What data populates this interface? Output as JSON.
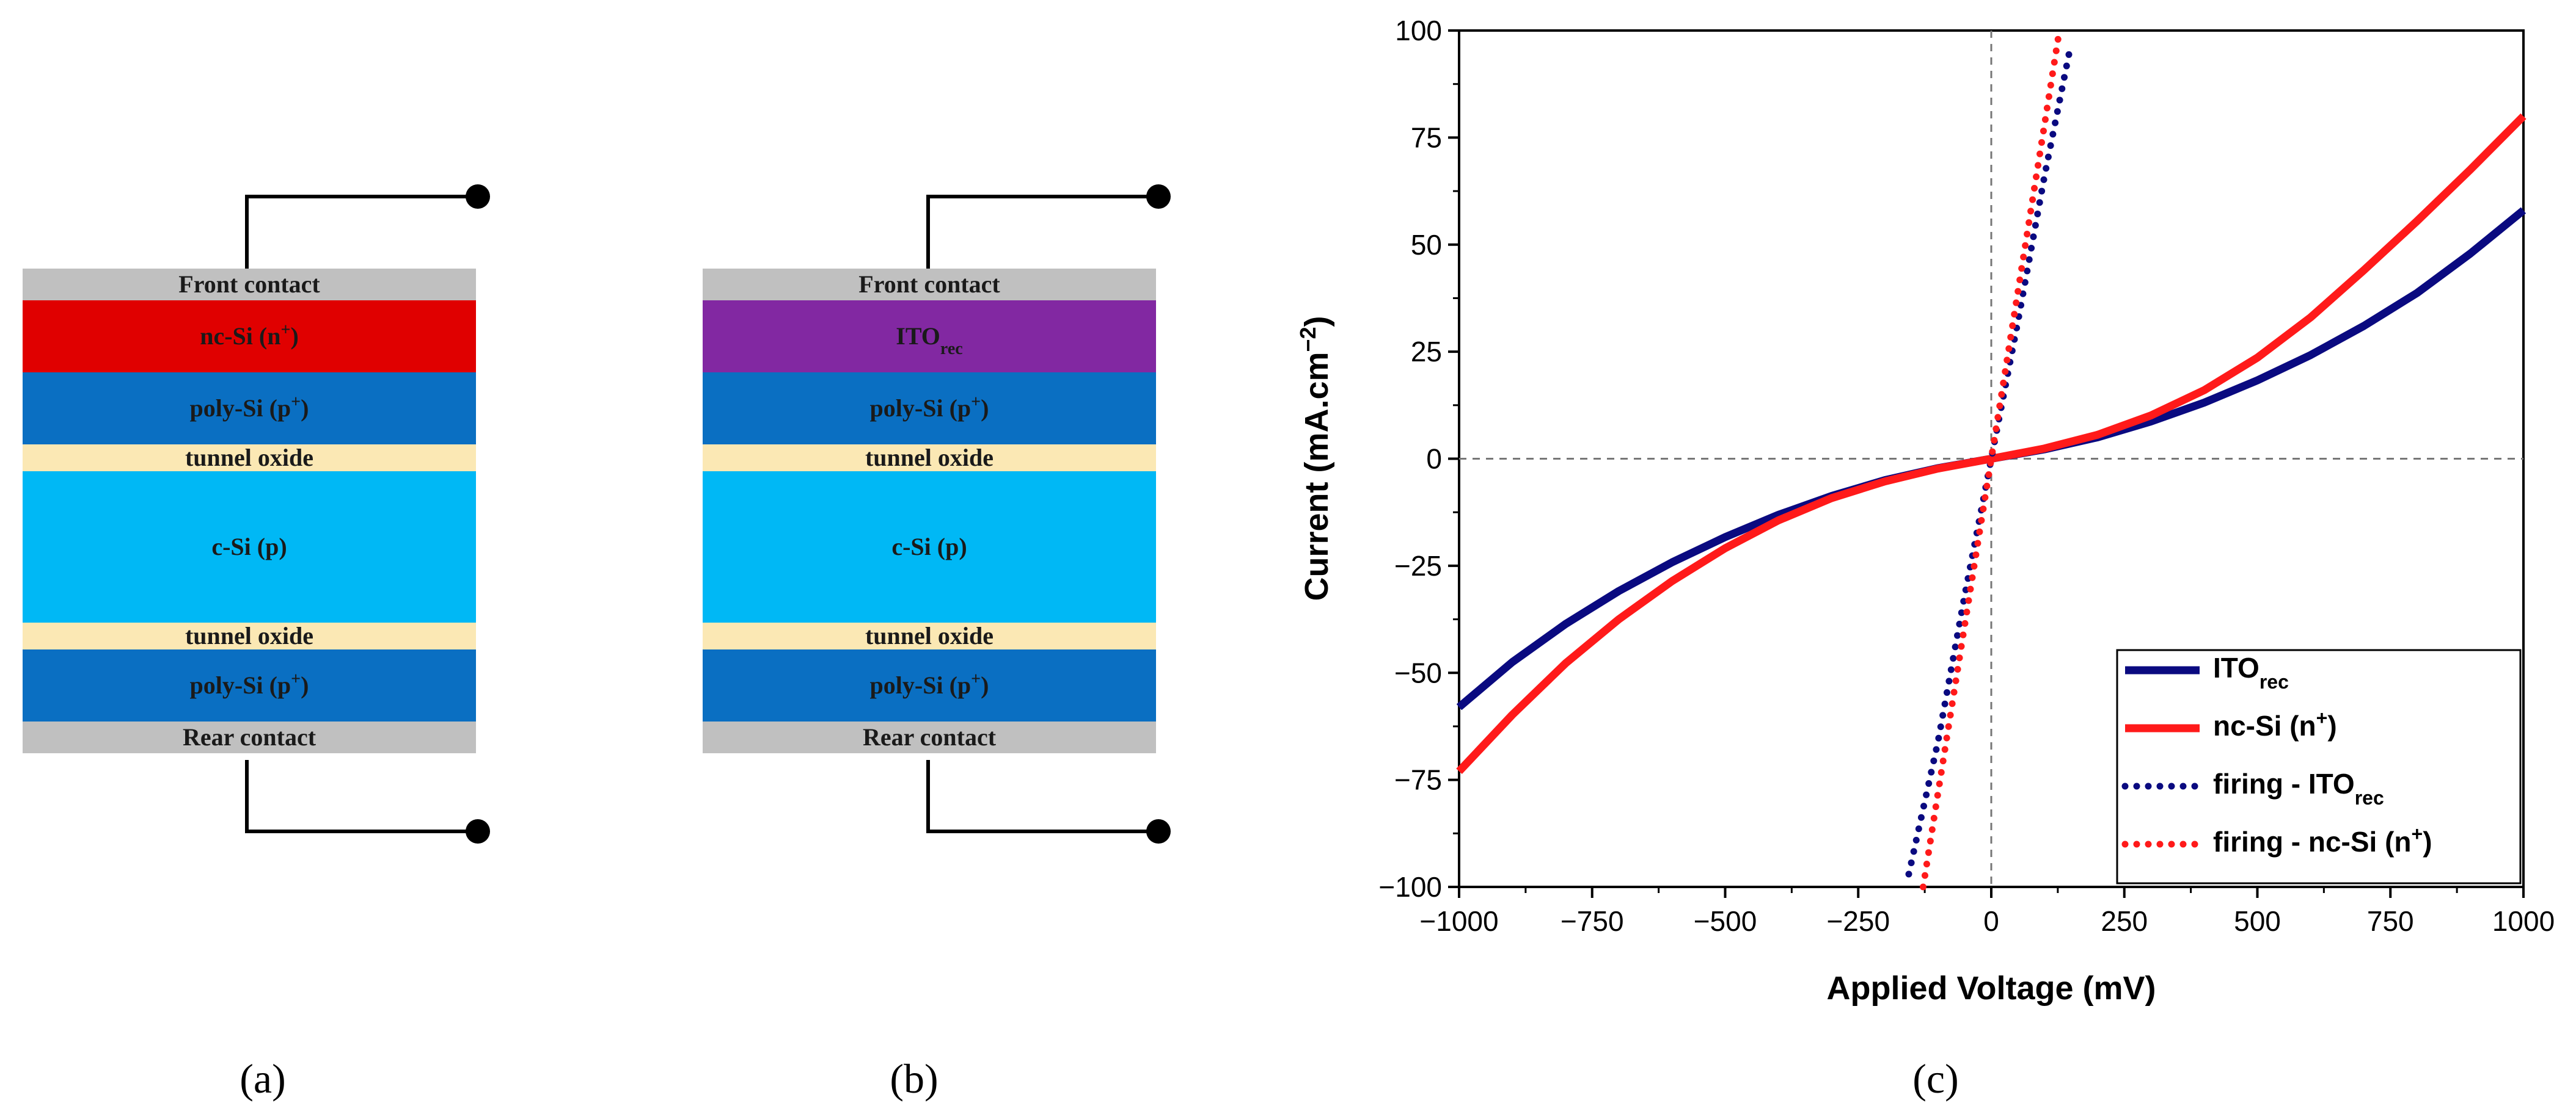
{
  "panels": {
    "a": {
      "label": "(a)",
      "layers": [
        {
          "name": "Front contact",
          "base": "Front contact",
          "sup": "",
          "sub": "",
          "color": "#c0c0c0"
        },
        {
          "name": "nc-Si (n+)",
          "base": "nc-Si (n",
          "sup": "+",
          "sub": "",
          "tail": ")",
          "color": "#e00000"
        },
        {
          "name": "poly-Si (p+)",
          "base": "poly-Si (p",
          "sup": "+",
          "sub": "",
          "tail": ")",
          "color": "#0a6fc2"
        },
        {
          "name": "tunnel oxide",
          "base": "tunnel oxide",
          "sup": "",
          "sub": "",
          "color": "#fbe8b4"
        },
        {
          "name": "c-Si (p)",
          "base": "c-Si (p)",
          "sup": "",
          "sub": "",
          "color": "#00b8f5"
        },
        {
          "name": "tunnel oxide",
          "base": "tunnel oxide",
          "sup": "",
          "sub": "",
          "color": "#fbe8b4"
        },
        {
          "name": "poly-Si (p+)",
          "base": "poly-Si (p",
          "sup": "+",
          "sub": "",
          "tail": ")",
          "color": "#0a6fc2"
        },
        {
          "name": "Rear contact",
          "base": "Rear contact",
          "sup": "",
          "sub": "",
          "color": "#c0c0c0"
        }
      ]
    },
    "b": {
      "label": "(b)",
      "layers": [
        {
          "name": "Front contact",
          "base": "Front contact",
          "sup": "",
          "sub": "",
          "color": "#c0c0c0"
        },
        {
          "name": "ITOrec",
          "base": "ITO",
          "sup": "",
          "sub": "rec",
          "color": "#8228a2"
        },
        {
          "name": "poly-Si (p+)",
          "base": "poly-Si (p",
          "sup": "+",
          "sub": "",
          "tail": ")",
          "color": "#0a6fc2"
        },
        {
          "name": "tunnel oxide",
          "base": "tunnel oxide",
          "sup": "",
          "sub": "",
          "color": "#fbe8b4"
        },
        {
          "name": "c-Si (p)",
          "base": "c-Si (p)",
          "sup": "",
          "sub": "",
          "color": "#00b8f5"
        },
        {
          "name": "tunnel oxide",
          "base": "tunnel oxide",
          "sup": "",
          "sub": "",
          "color": "#fbe8b4"
        },
        {
          "name": "poly-Si (p+)",
          "base": "poly-Si (p",
          "sup": "+",
          "sub": "",
          "tail": ")",
          "color": "#0a6fc2"
        },
        {
          "name": "Rear contact",
          "base": "Rear contact",
          "sup": "",
          "sub": "",
          "color": "#c0c0c0"
        }
      ]
    },
    "c": {
      "label": "(c)"
    }
  },
  "chart_data": {
    "type": "line",
    "xlabel": "Applied Voltage (mV)",
    "ylabel_base": "Current (mA.cm",
    "ylabel_sup": "−2",
    "ylabel_tail": ")",
    "xlim": [
      -1000,
      1000
    ],
    "ylim": [
      -100,
      100
    ],
    "xticks": [
      -1000,
      -750,
      -500,
      -250,
      0,
      250,
      500,
      750,
      1000
    ],
    "yticks": [
      -100,
      -75,
      -50,
      -25,
      0,
      25,
      50,
      75,
      100
    ],
    "xtick_labels": [
      "−1000",
      "−750",
      "−500",
      "−250",
      "0",
      "250",
      "500",
      "750",
      "1000"
    ],
    "ytick_labels": [
      "−100",
      "−75",
      "−50",
      "−25",
      "0",
      "25",
      "50",
      "75",
      "100"
    ],
    "legend_position": "bottom-right",
    "series": [
      {
        "name": "ITOrec",
        "label_base": "ITO",
        "label_sub": "rec",
        "label_sup": "",
        "label_tail": "",
        "style": "solid",
        "color": "#0a0a80",
        "x": [
          -1000,
          -900,
          -800,
          -700,
          -600,
          -500,
          -400,
          -300,
          -200,
          -100,
          0,
          100,
          200,
          300,
          400,
          500,
          600,
          700,
          800,
          900,
          1000
        ],
        "y": [
          -58,
          -47.5,
          -38.6,
          -30.9,
          -24.2,
          -18.3,
          -13.1,
          -8.7,
          -5.0,
          -2.2,
          0,
          2.2,
          5.0,
          8.7,
          13.1,
          18.3,
          24.2,
          31.0,
          38.7,
          47.9,
          58
        ]
      },
      {
        "name": "nc-Si (n+)",
        "label_base": "nc-Si (n",
        "label_sub": "",
        "label_sup": "+",
        "label_tail": ")",
        "style": "solid",
        "color": "#ff1a1a",
        "x": [
          -1000,
          -900,
          -800,
          -700,
          -600,
          -500,
          -400,
          -300,
          -200,
          -100,
          0,
          100,
          200,
          300,
          400,
          500,
          600,
          700,
          800,
          900,
          1000
        ],
        "y": [
          -73,
          -59.8,
          -47.8,
          -37.5,
          -28.6,
          -20.9,
          -14.4,
          -9.2,
          -5.3,
          -2.3,
          0,
          2.4,
          5.6,
          10.1,
          16.0,
          23.6,
          33.0,
          44.0,
          55.5,
          67.5,
          80
        ]
      },
      {
        "name": "firing - ITOrec",
        "label_base": "firing - ITO",
        "label_sub": "rec",
        "label_sup": "",
        "label_tail": "",
        "style": "dotted",
        "color": "#0a0a80",
        "x": [
          -155,
          -100,
          -50,
          0,
          50,
          100,
          150
        ],
        "y": [
          -97,
          -66,
          -32,
          0,
          32,
          66,
          97
        ]
      },
      {
        "name": "firing - nc-Si (n+)",
        "label_base": "firing - nc-Si (n",
        "label_sub": "",
        "label_sup": "+",
        "label_tail": ")",
        "style": "dotted",
        "color": "#ff1a1a",
        "x": [
          -128,
          -100,
          -50,
          0,
          50,
          100,
          128
        ],
        "y": [
          -100,
          -78,
          -39,
          0,
          39,
          78,
          100
        ]
      }
    ]
  }
}
